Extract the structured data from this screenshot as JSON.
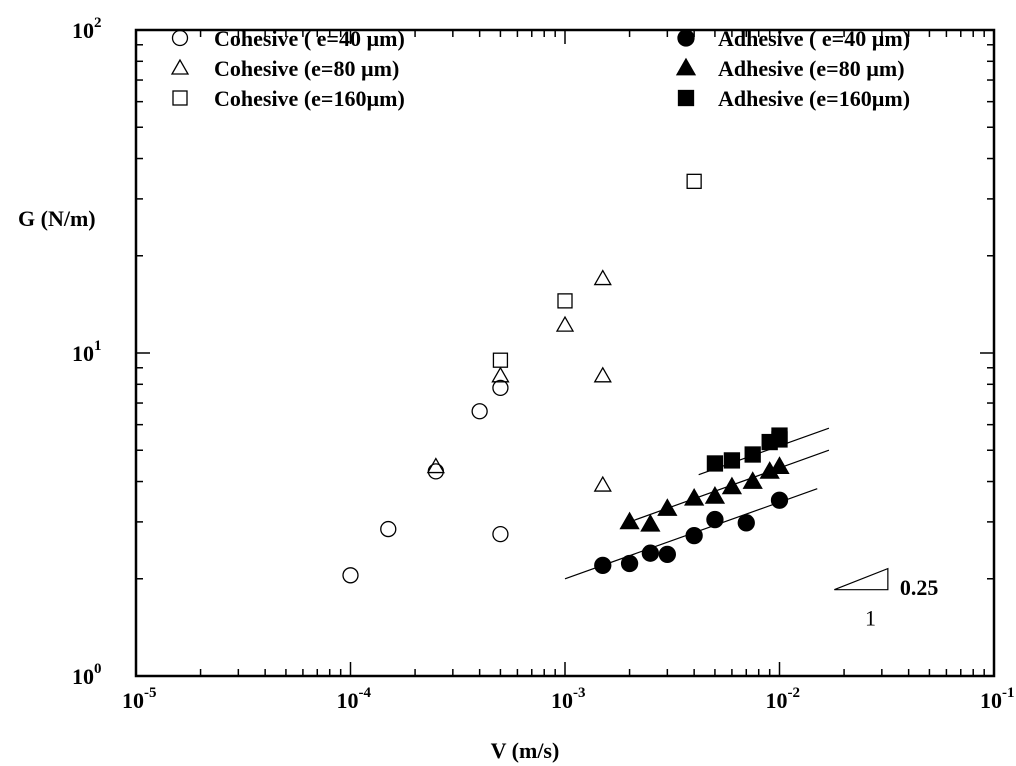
{
  "chart_data": {
    "type": "scatter",
    "x_scale": "log",
    "y_scale": "log",
    "xlim": [
      1e-05,
      0.1
    ],
    "ylim": [
      1,
      100
    ],
    "xlabel": "V (m/s)",
    "ylabel": "G (N/m)",
    "x_ticks": [
      {
        "value": 1e-05,
        "base": "10",
        "exp": "-5"
      },
      {
        "value": 0.0001,
        "base": "10",
        "exp": "-4"
      },
      {
        "value": 0.001,
        "base": "10",
        "exp": "-3"
      },
      {
        "value": 0.01,
        "base": "10",
        "exp": "-2"
      },
      {
        "value": 0.1,
        "base": "10",
        "exp": "-1"
      }
    ],
    "y_ticks": [
      {
        "value": 1,
        "base": "10",
        "exp": "0"
      },
      {
        "value": 10,
        "base": "10",
        "exp": "1"
      },
      {
        "value": 100,
        "base": "10",
        "exp": "2"
      }
    ],
    "grid": false,
    "legend_left": [
      {
        "name": "Cohesive ( e=40 µm)",
        "marker": "circle-open"
      },
      {
        "name": "Cohesive (e=80 µm)",
        "marker": "triangle-open"
      },
      {
        "name": "Cohesive (e=160µm)",
        "marker": "square-open"
      }
    ],
    "legend_right": [
      {
        "name": "Adhesive ( e=40 µm)",
        "marker": "circle-filled"
      },
      {
        "name": "Adhesive (e=80 µm)",
        "marker": "triangle-filled"
      },
      {
        "name": "Adhesive (e=160µm)",
        "marker": "square-filled"
      }
    ],
    "series": [
      {
        "name": "Cohesive ( e=40 µm)",
        "marker": "circle-open",
        "points": [
          [
            0.0001,
            2.05
          ],
          [
            0.00015,
            2.85
          ],
          [
            0.00025,
            4.3
          ],
          [
            0.0004,
            6.6
          ],
          [
            0.0005,
            7.8
          ],
          [
            0.0005,
            2.75
          ]
        ]
      },
      {
        "name": "Cohesive (e=80 µm)",
        "marker": "triangle-open",
        "points": [
          [
            0.00025,
            4.45
          ],
          [
            0.0005,
            8.5
          ],
          [
            0.001,
            12.2
          ],
          [
            0.0015,
            17.0
          ],
          [
            0.0015,
            8.5
          ],
          [
            0.0015,
            3.9
          ]
        ]
      },
      {
        "name": "Cohesive (e=160µm)",
        "marker": "square-open",
        "points": [
          [
            0.0005,
            9.5
          ],
          [
            0.001,
            14.5
          ],
          [
            0.004,
            34.0
          ]
        ]
      },
      {
        "name": "Adhesive ( e=40 µm)",
        "marker": "circle-filled",
        "points": [
          [
            0.0015,
            2.2
          ],
          [
            0.002,
            2.23
          ],
          [
            0.0025,
            2.4
          ],
          [
            0.003,
            2.38
          ],
          [
            0.004,
            2.72
          ],
          [
            0.005,
            3.05
          ],
          [
            0.007,
            2.98
          ],
          [
            0.01,
            3.5
          ]
        ],
        "fit": [
          [
            0.001,
            2.0
          ],
          [
            0.015,
            3.8
          ]
        ]
      },
      {
        "name": "Adhesive (e=80 µm)",
        "marker": "triangle-filled",
        "points": [
          [
            0.002,
            3.0
          ],
          [
            0.0025,
            2.95
          ],
          [
            0.003,
            3.3
          ],
          [
            0.004,
            3.55
          ],
          [
            0.005,
            3.6
          ],
          [
            0.006,
            3.85
          ],
          [
            0.0075,
            4.0
          ],
          [
            0.009,
            4.3
          ],
          [
            0.01,
            4.45
          ]
        ],
        "fit": [
          [
            0.002,
            3.0
          ],
          [
            0.017,
            5.0
          ]
        ]
      },
      {
        "name": "Adhesive (e=160µm)",
        "marker": "square-filled",
        "points": [
          [
            0.005,
            4.55
          ],
          [
            0.006,
            4.65
          ],
          [
            0.0075,
            4.85
          ],
          [
            0.009,
            5.3
          ],
          [
            0.01,
            5.4
          ],
          [
            0.01,
            5.55
          ]
        ],
        "fit": [
          [
            0.0042,
            4.2
          ],
          [
            0.017,
            5.85
          ]
        ]
      }
    ],
    "slope_annotation": {
      "rise_label": "0.25",
      "run_label": "1",
      "corner_x": 0.032,
      "corner_y": 1.85,
      "start_x": 0.018,
      "top_y": 2.15
    }
  }
}
